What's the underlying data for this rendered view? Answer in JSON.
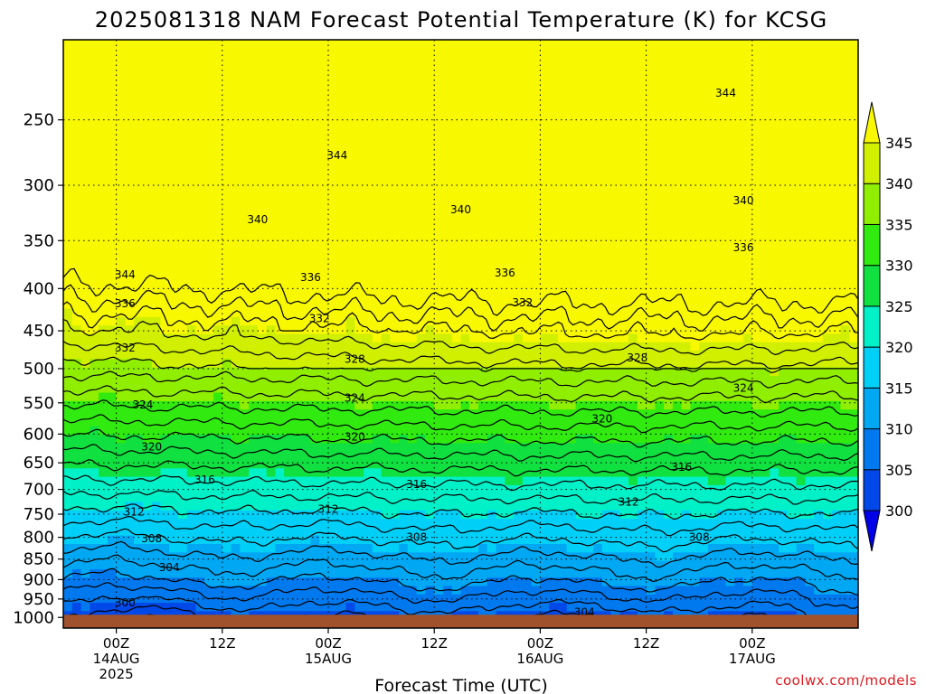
{
  "title": "2025081318 NAM Forecast Potential Temperature (K) for KCSG",
  "credit": "coolwx.com/models",
  "chart_data": {
    "type": "heatmap",
    "title": "2025081318 NAM Forecast Potential Temperature (K) for KCSG",
    "xlabel": "Forecast Time (UTC)",
    "ylabel": "",
    "y_scale": "log",
    "y_reversed": true,
    "y_range_hPa": [
      1030,
      200
    ],
    "x_range_hours": [
      -6,
      84
    ],
    "y_ticks": [
      250,
      300,
      350,
      400,
      450,
      500,
      550,
      600,
      650,
      700,
      750,
      800,
      850,
      900,
      950,
      1000
    ],
    "x_ticks": [
      {
        "hour": 0,
        "labels": [
          "00Z",
          "14AUG",
          "2025"
        ]
      },
      {
        "hour": 12,
        "labels": [
          "12Z"
        ]
      },
      {
        "hour": 24,
        "labels": [
          "00Z",
          "15AUG"
        ]
      },
      {
        "hour": 36,
        "labels": [
          "12Z"
        ]
      },
      {
        "hour": 48,
        "labels": [
          "00Z",
          "16AUG"
        ]
      },
      {
        "hour": 60,
        "labels": [
          "12Z"
        ]
      },
      {
        "hour": 72,
        "labels": [
          "00Z",
          "17AUG"
        ]
      }
    ],
    "colorbar": {
      "levels": [
        300,
        305,
        310,
        315,
        320,
        325,
        330,
        335,
        340,
        345
      ],
      "colors": [
        "#0000e8",
        "#0048e8",
        "#0078ee",
        "#00a8f4",
        "#00d0f8",
        "#00f0c8",
        "#10e040",
        "#30ea10",
        "#90ee00",
        "#d0f000",
        "#f8f800"
      ],
      "extend": "both"
    },
    "contour_interval": 2,
    "contour_labels": [
      {
        "value": 344,
        "hour": 1,
        "p": 385
      },
      {
        "value": 344,
        "hour": 25,
        "p": 276
      },
      {
        "value": 344,
        "hour": 69,
        "p": 232
      },
      {
        "value": 340,
        "hour": 16,
        "p": 330
      },
      {
        "value": 340,
        "hour": 39,
        "p": 321
      },
      {
        "value": 340,
        "hour": 71,
        "p": 313
      },
      {
        "value": 336,
        "hour": 1,
        "p": 417
      },
      {
        "value": 336,
        "hour": 22,
        "p": 388
      },
      {
        "value": 336,
        "hour": 44,
        "p": 383
      },
      {
        "value": 336,
        "hour": 71,
        "p": 357
      },
      {
        "value": 332,
        "hour": 1,
        "p": 472
      },
      {
        "value": 332,
        "hour": 23,
        "p": 435
      },
      {
        "value": 332,
        "hour": 46,
        "p": 416
      },
      {
        "value": 328,
        "hour": 27,
        "p": 487
      },
      {
        "value": 328,
        "hour": 59,
        "p": 485
      },
      {
        "value": 324,
        "hour": 3,
        "p": 553
      },
      {
        "value": 324,
        "hour": 27,
        "p": 543
      },
      {
        "value": 324,
        "hour": 71,
        "p": 528
      },
      {
        "value": 320,
        "hour": 4,
        "p": 622
      },
      {
        "value": 320,
        "hour": 27,
        "p": 605
      },
      {
        "value": 320,
        "hour": 55,
        "p": 575
      },
      {
        "value": 316,
        "hour": 10,
        "p": 682
      },
      {
        "value": 316,
        "hour": 34,
        "p": 690
      },
      {
        "value": 316,
        "hour": 64,
        "p": 658
      },
      {
        "value": 312,
        "hour": 2,
        "p": 745
      },
      {
        "value": 312,
        "hour": 24,
        "p": 740
      },
      {
        "value": 312,
        "hour": 58,
        "p": 725
      },
      {
        "value": 308,
        "hour": 4,
        "p": 803
      },
      {
        "value": 308,
        "hour": 34,
        "p": 800
      },
      {
        "value": 308,
        "hour": 66,
        "p": 800
      },
      {
        "value": 304,
        "hour": 6,
        "p": 870
      },
      {
        "value": 304,
        "hour": 53,
        "p": 985
      },
      {
        "value": 300,
        "hour": 1,
        "p": 960
      }
    ]
  }
}
